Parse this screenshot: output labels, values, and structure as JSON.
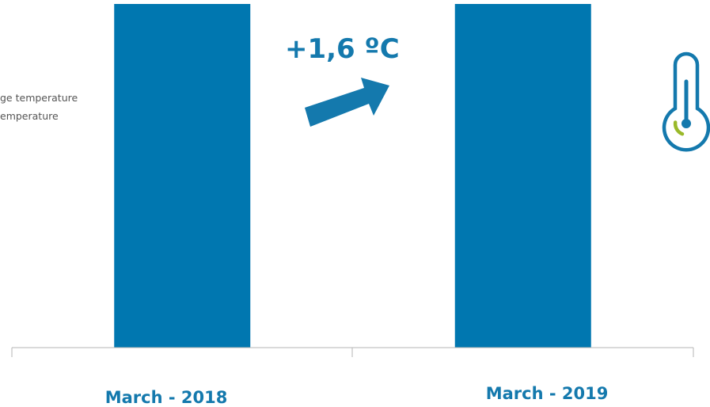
{
  "chart_data": {
    "type": "bar",
    "categories": [
      "March - 2018",
      "March - 2019"
    ],
    "legend": [
      "ge temperature",
      "emperature"
    ],
    "annotation": "+1,6 ºC",
    "grid": false,
    "legend_placement": "top-left"
  },
  "colors": {
    "bar": "#0077b0",
    "accent": "#1479ad",
    "gauge_green": "#9ab92a",
    "axis": "#b4b4b4"
  },
  "icons": {
    "trend": "arrow-up-right-icon",
    "thermometer": "thermometer-icon"
  }
}
